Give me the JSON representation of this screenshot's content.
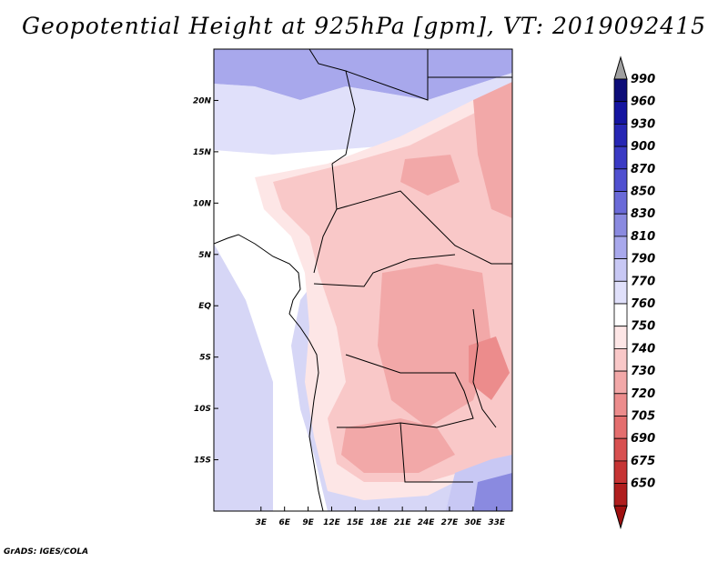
{
  "title": "Geopotential Height at 925hPa [gpm], VT: 2019092415",
  "credit": "GrADS: IGES/COLA",
  "map": {
    "lon_range": [
      -3,
      35
    ],
    "lat_range": [
      -20,
      25
    ],
    "lat_ticks": [
      {
        "value": 20,
        "label": "20N"
      },
      {
        "value": 15,
        "label": "15N"
      },
      {
        "value": 10,
        "label": "10N"
      },
      {
        "value": 5,
        "label": "5N"
      },
      {
        "value": 0,
        "label": "EQ"
      },
      {
        "value": -5,
        "label": "5S"
      },
      {
        "value": -10,
        "label": "10S"
      },
      {
        "value": -15,
        "label": "15S"
      }
    ],
    "lon_ticks": [
      {
        "value": 3,
        "label": "3E"
      },
      {
        "value": 6,
        "label": "6E"
      },
      {
        "value": 9,
        "label": "9E"
      },
      {
        "value": 12,
        "label": "12E"
      },
      {
        "value": 15,
        "label": "15E"
      },
      {
        "value": 18,
        "label": "18E"
      },
      {
        "value": 21,
        "label": "21E"
      },
      {
        "value": 24,
        "label": "24E"
      },
      {
        "value": 27,
        "label": "27E"
      },
      {
        "value": 30,
        "label": "30E"
      },
      {
        "value": 33,
        "label": "33E"
      }
    ]
  },
  "colorbar": {
    "levels": [
      {
        "label": "990",
        "color": "#0c0c78"
      },
      {
        "label": "960",
        "color": "#1414a0"
      },
      {
        "label": "930",
        "color": "#2626b4"
      },
      {
        "label": "900",
        "color": "#3a3ac4"
      },
      {
        "label": "870",
        "color": "#5050d0"
      },
      {
        "label": "850",
        "color": "#6a6ad8"
      },
      {
        "label": "830",
        "color": "#8a8ae0"
      },
      {
        "label": "810",
        "color": "#a8a8ec"
      },
      {
        "label": "790",
        "color": "#c8c8f4"
      },
      {
        "label": "770",
        "color": "#e0e0fa"
      },
      {
        "label": "760",
        "color": "#ffffff"
      },
      {
        "label": "750",
        "color": "#fde6e6"
      },
      {
        "label": "740",
        "color": "#f9c8c8"
      },
      {
        "label": "730",
        "color": "#f2a8a8"
      },
      {
        "label": "720",
        "color": "#ec8c8c"
      },
      {
        "label": "705",
        "color": "#e46e6e"
      },
      {
        "label": "690",
        "color": "#d85050"
      },
      {
        "label": "675",
        "color": "#c63434"
      },
      {
        "label": "650",
        "color": "#b01e1e"
      }
    ],
    "top_arrow_color": "#a0a0a0",
    "bottom_arrow_color": "#a01010"
  }
}
